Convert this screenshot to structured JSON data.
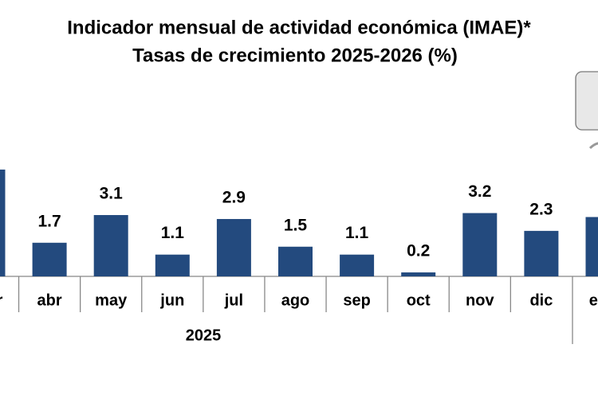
{
  "chart_data": {
    "type": "bar",
    "title": "Indicador mensual de actividad económica (IMAE)*",
    "subtitle": "Tasas de crecimiento 2025-2026 (%)",
    "categories": [
      "mar",
      "abr",
      "may",
      "jun",
      "jul",
      "ago",
      "sep",
      "oct",
      "nov",
      "dic",
      "ene"
    ],
    "values": [
      5.4,
      1.7,
      3.1,
      1.1,
      2.9,
      1.5,
      1.1,
      0.2,
      3.2,
      2.3,
      3.0
    ],
    "year_label": "2025",
    "color": "#234a7e",
    "ylim": [
      0,
      6
    ]
  }
}
